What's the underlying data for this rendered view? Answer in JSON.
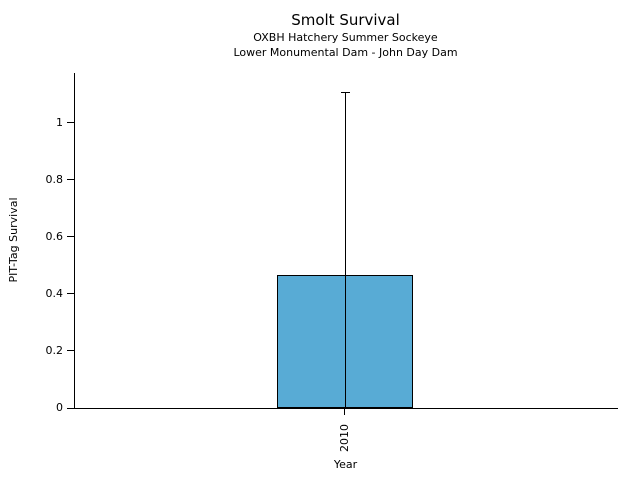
{
  "chart_data": {
    "type": "bar",
    "title": "Smolt Survival",
    "subtitle1": "OXBH Hatchery Summer Sockeye",
    "subtitle2": "Lower Monumental Dam - John Day Dam",
    "xlabel": "Year",
    "ylabel": "PIT-Tag Survival",
    "categories": [
      "2010"
    ],
    "values": [
      0.467
    ],
    "error_upper": [
      1.11
    ],
    "error_lower": [
      0
    ],
    "yticks": [
      0,
      0.2,
      0.4,
      0.6,
      0.8,
      1
    ],
    "ytick_labels": [
      "0",
      "0.2",
      "0.4",
      "0.6",
      "0.8",
      "1"
    ],
    "ylim": [
      0,
      1.175
    ],
    "grid": "off",
    "legend": "none",
    "bar_color": "#58ABD5",
    "bar_edge_color": "#000000",
    "axis_color": "#000000"
  }
}
